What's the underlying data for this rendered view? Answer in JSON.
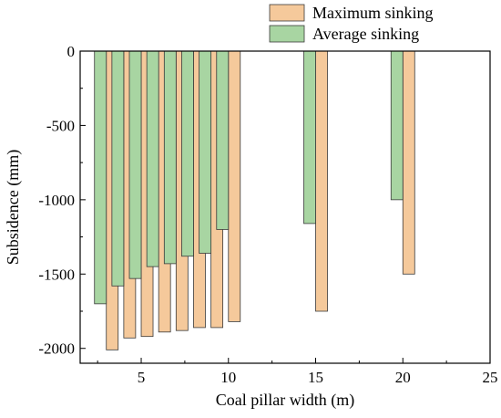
{
  "chart_data": {
    "type": "bar",
    "title": "",
    "xlabel": "Coal pillar width (m)",
    "ylabel": "Subsidence (mm)",
    "xlim": [
      1.5,
      25
    ],
    "ylim": [
      -2100,
      0
    ],
    "x_ticks": [
      5,
      10,
      15,
      20,
      25
    ],
    "y_ticks": [
      0,
      -500,
      -1000,
      -1500,
      -2000
    ],
    "grid": false,
    "legend_position": "top-right",
    "x": [
      3,
      4,
      5,
      6,
      7,
      8,
      9,
      10,
      15,
      20
    ],
    "series": [
      {
        "name": "Maximum sinking",
        "color": "#f5c99b",
        "values": [
          -2010,
          -1930,
          -1920,
          -1890,
          -1880,
          -1860,
          -1860,
          -1820,
          -1750,
          -1500
        ]
      },
      {
        "name": "Average sinking",
        "color": "#a8d5a2",
        "values": [
          -1700,
          -1580,
          -1530,
          -1450,
          -1430,
          -1380,
          -1360,
          -1200,
          -1160,
          -1000
        ]
      }
    ]
  }
}
